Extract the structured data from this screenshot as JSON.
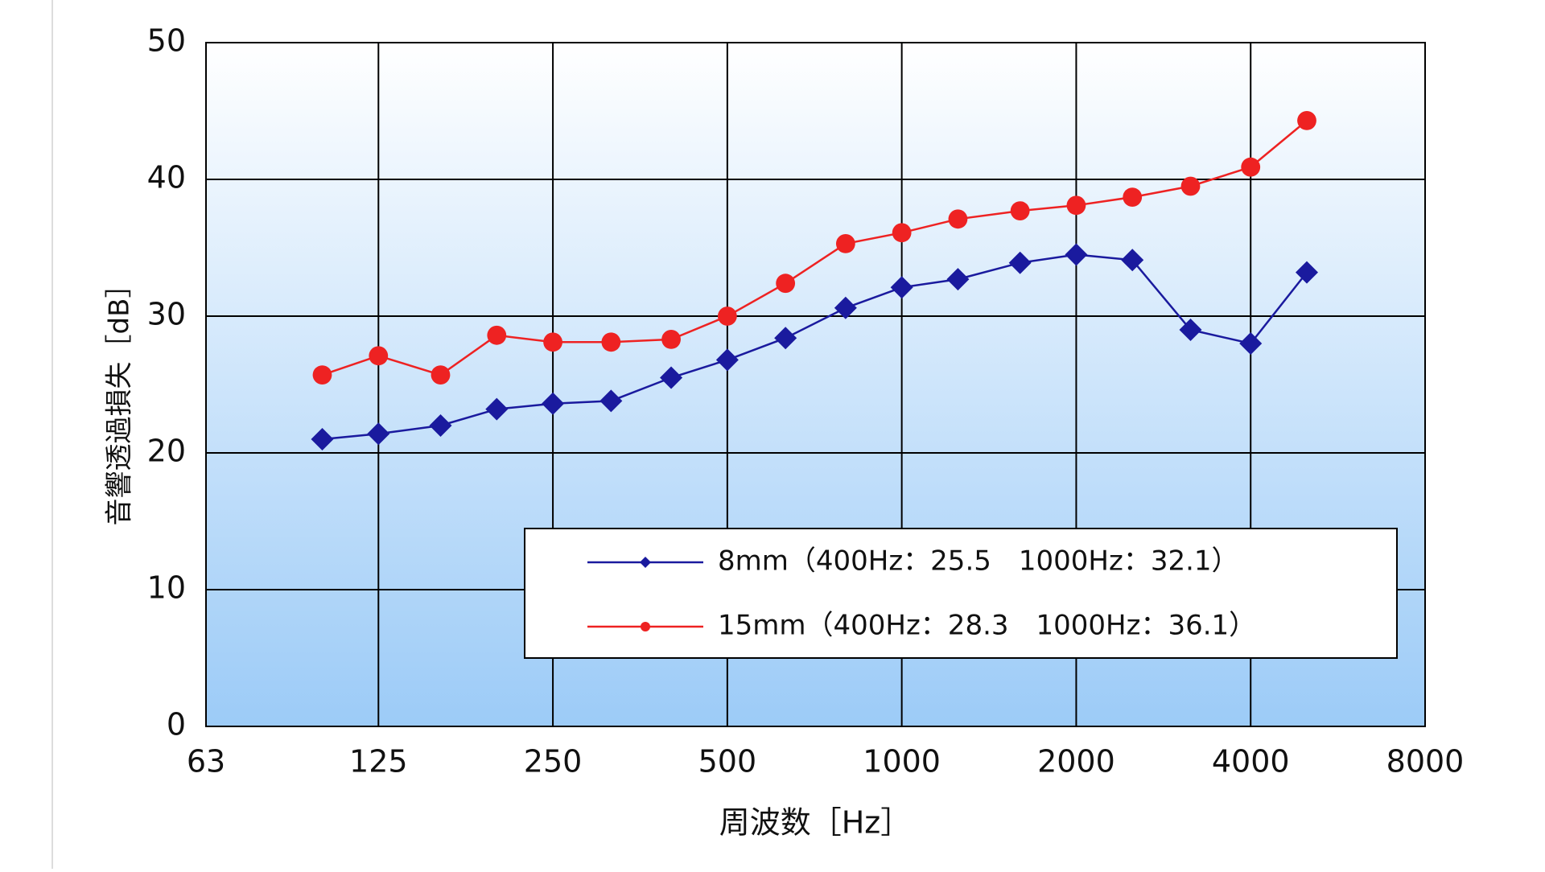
{
  "chart_data": {
    "type": "line",
    "xlabel": "周波数［Hz］",
    "ylabel": "音響透過損失［dB］",
    "x": [
      100,
      125,
      160,
      200,
      250,
      315,
      400,
      500,
      630,
      800,
      1000,
      1250,
      1600,
      2000,
      2500,
      3150,
      4000,
      5000
    ],
    "xscale": "log",
    "xlim": [
      63,
      8000
    ],
    "xticks": [
      63,
      125,
      250,
      500,
      1000,
      2000,
      4000,
      8000
    ],
    "ylim": [
      0,
      50
    ],
    "yticks": [
      0,
      10,
      20,
      30,
      40,
      50
    ],
    "grid": true,
    "legend": "lower right",
    "series": [
      {
        "name": "8mm（400Hz：25.5　1000Hz：32.1）",
        "color": "#1a1a9e",
        "marker": "diamond",
        "values": [
          21.0,
          21.4,
          22.0,
          23.2,
          23.6,
          23.8,
          25.5,
          26.8,
          28.4,
          30.6,
          32.1,
          32.7,
          33.9,
          34.5,
          34.1,
          29.0,
          28.0,
          33.2
        ]
      },
      {
        "name": "15mm（400Hz：28.3　1000Hz：36.1）",
        "color": "#ee2222",
        "marker": "circle",
        "values": [
          25.7,
          27.1,
          25.7,
          28.6,
          28.1,
          28.1,
          28.3,
          30.0,
          32.4,
          35.3,
          36.1,
          37.1,
          37.7,
          38.1,
          38.7,
          39.5,
          40.9,
          44.3
        ]
      }
    ]
  }
}
